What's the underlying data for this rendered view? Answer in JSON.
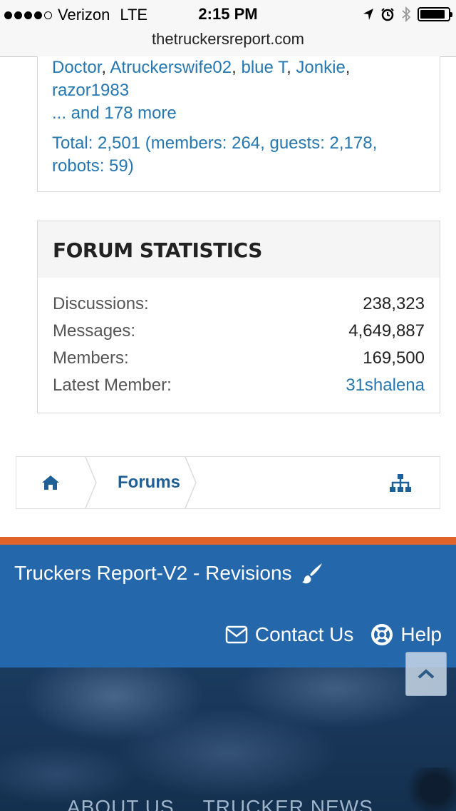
{
  "status_bar": {
    "carrier": "Verizon",
    "network": "LTE",
    "time": "2:15 PM"
  },
  "url_bar": {
    "url": "thetruckersreport.com"
  },
  "online": {
    "names": [
      "Doctor",
      "Atruckerswife02",
      "blue T",
      "Jonkie",
      "razor1983"
    ],
    "more": "... and 178 more",
    "total": "Total: 2,501 (members: 264, guests: 2,178, robots: 59)"
  },
  "stats": {
    "title": "FORUM STATISTICS",
    "rows": [
      {
        "label": "Discussions:",
        "value": "238,323"
      },
      {
        "label": "Messages:",
        "value": "4,649,887"
      },
      {
        "label": "Members:",
        "value": "169,500"
      },
      {
        "label": "Latest Member:",
        "value": "31shalena"
      }
    ]
  },
  "breadcrumb": {
    "home_icon": "home-icon",
    "forums_label": "Forums",
    "sitemap_icon": "sitemap-icon"
  },
  "footer": {
    "style_chooser": "Truckers Report-V2 - Revisions",
    "contact_label": "Contact Us",
    "help_label": "Help",
    "menu": [
      "ABOUT US",
      "TRUCKER NEWS"
    ]
  },
  "colors": {
    "link": "#2577b1",
    "footer_blue": "#2567ab",
    "footer_stripe": "#e0632a"
  }
}
